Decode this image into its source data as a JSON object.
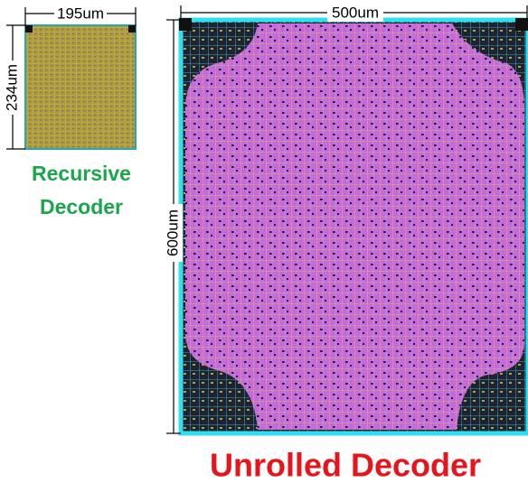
{
  "small_chip": {
    "width_label": "195um",
    "height_label": "234um",
    "name": [
      "Recursive",
      "Decoder"
    ]
  },
  "large_chip": {
    "width_label": "500um",
    "height_label": "600um",
    "name": "Unrolled Decoder"
  }
}
